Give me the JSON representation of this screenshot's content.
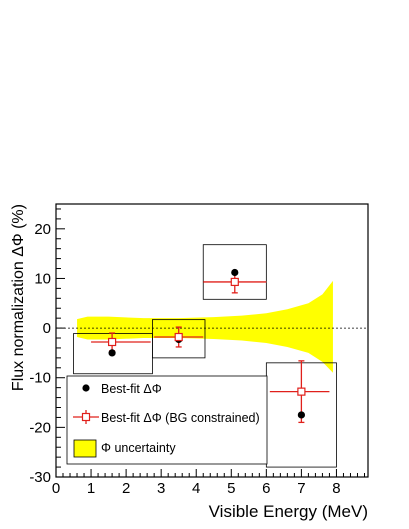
{
  "chart_data": {
    "type": "scatter",
    "xlabel": "Visible Energy (MeV)",
    "ylabel": "Flux normalization ΔΦ (%)",
    "xlim": [
      0,
      8.9
    ],
    "ylim": [
      -30,
      25
    ],
    "xticks": [
      0,
      1,
      2,
      3,
      4,
      5,
      6,
      7,
      8
    ],
    "yticks": [
      -30,
      -20,
      -10,
      0,
      10,
      20
    ],
    "grid": false,
    "zero_line": true,
    "legend": {
      "position": "bottom-left"
    },
    "colors": {
      "band": "#ffff00",
      "constrained": "#e0201b",
      "bestfit": "#000000"
    },
    "uncertainty_band": {
      "name": "Φ uncertainty",
      "x": [
        0.6,
        0.9,
        1.5,
        2.5,
        3.5,
        4.5,
        5.3,
        6.0,
        6.6,
        7.2,
        7.6,
        7.9
      ],
      "upper": [
        1.8,
        2.3,
        2.3,
        2.0,
        2.0,
        2.2,
        2.5,
        3.0,
        3.8,
        5.0,
        6.8,
        9.5
      ],
      "lower": [
        -1.8,
        -2.3,
        -2.3,
        -2.0,
        -2.0,
        -2.2,
        -2.5,
        -3.0,
        -3.8,
        -5.0,
        -6.8,
        -9.0
      ]
    },
    "series": [
      {
        "name": "Best-fit ΔΦ",
        "marker": "filled-circle",
        "x": [
          1.6,
          3.5,
          5.1,
          7.0
        ],
        "y": [
          -5.0,
          -2.3,
          11.2,
          -17.5
        ]
      },
      {
        "name": "Best-fit ΔΦ (BG constrained)",
        "marker": "open-square",
        "x": [
          1.6,
          3.5,
          5.1,
          7.0
        ],
        "y": [
          -2.8,
          -1.8,
          9.3,
          -12.8
        ],
        "xerr_low": [
          0.6,
          0.7,
          0.9,
          0.9
        ],
        "xerr_high": [
          1.1,
          0.7,
          0.9,
          0.8
        ],
        "yerr": [
          1.8,
          2.0,
          2.2,
          6.2
        ]
      }
    ],
    "boxes": [
      {
        "x0": 0.5,
        "x1": 2.75,
        "y0": -9.2,
        "y1": -1.1
      },
      {
        "x0": 2.75,
        "x1": 4.25,
        "y0": -6.0,
        "y1": 1.7
      },
      {
        "x0": 4.2,
        "x1": 6.0,
        "y0": 5.8,
        "y1": 16.8
      },
      {
        "x0": 6.0,
        "x1": 8.0,
        "y0": -28.0,
        "y1": -7.0
      }
    ]
  }
}
